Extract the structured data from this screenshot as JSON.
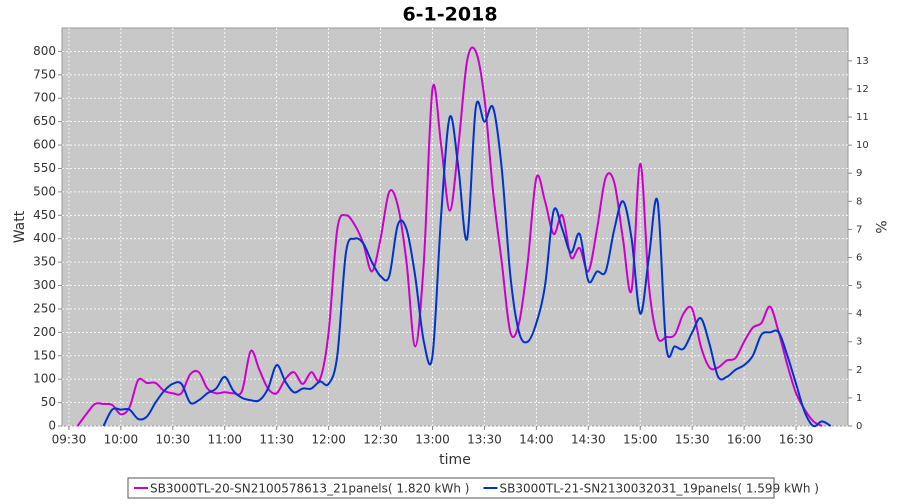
{
  "chart_data": {
    "type": "line",
    "title": "6-1-2018",
    "x_label": "time",
    "y_label": "Watt",
    "y2_label": "%",
    "x": [
      "09:30",
      "09:35",
      "09:40",
      "09:45",
      "09:50",
      "09:55",
      "10:00",
      "10:05",
      "10:10",
      "10:15",
      "10:20",
      "10:25",
      "10:30",
      "10:35",
      "10:40",
      "10:45",
      "10:50",
      "10:55",
      "11:00",
      "11:05",
      "11:10",
      "11:15",
      "11:20",
      "11:25",
      "11:30",
      "11:35",
      "11:40",
      "11:45",
      "11:50",
      "11:55",
      "12:00",
      "12:05",
      "12:10",
      "12:15",
      "12:20",
      "12:25",
      "12:30",
      "12:35",
      "12:40",
      "12:45",
      "12:50",
      "12:55",
      "13:00",
      "13:05",
      "13:10",
      "13:15",
      "13:20",
      "13:25",
      "13:30",
      "13:35",
      "13:40",
      "13:45",
      "13:50",
      "13:55",
      "14:00",
      "14:05",
      "14:10",
      "14:15",
      "14:20",
      "14:25",
      "14:30",
      "14:35",
      "14:40",
      "14:45",
      "14:50",
      "14:55",
      "15:00",
      "15:05",
      "15:10",
      "15:15",
      "15:20",
      "15:25",
      "15:30",
      "15:35",
      "15:40",
      "15:45",
      "15:50",
      "15:55",
      "16:00",
      "16:05",
      "16:10",
      "16:15",
      "16:20",
      "16:25",
      "16:30",
      "16:35",
      "16:40",
      "16:45",
      "16:50"
    ],
    "series": [
      {
        "name": "SB3000TL-20-SN2100578613_21panels( 1.820 kWh )",
        "color": "#cc00cc",
        "values": [
          null,
          0,
          25,
          47,
          47,
          45,
          25,
          40,
          98,
          92,
          92,
          75,
          70,
          70,
          110,
          115,
          80,
          70,
          72,
          70,
          75,
          160,
          120,
          80,
          70,
          100,
          115,
          90,
          115,
          100,
          200,
          420,
          450,
          430,
          390,
          330,
          400,
          500,
          470,
          350,
          170,
          350,
          720,
          600,
          460,
          600,
          780,
          800,
          700,
          500,
          350,
          200,
          220,
          350,
          530,
          480,
          410,
          450,
          360,
          380,
          330,
          420,
          530,
          520,
          400,
          290,
          560,
          300,
          190,
          190,
          195,
          240,
          250,
          170,
          125,
          125,
          140,
          145,
          180,
          210,
          220,
          255,
          200,
          130,
          70,
          35,
          10,
          0,
          null
        ]
      },
      {
        "name": "SB3000TL-21-SN2130032031_19panels( 1.599 kWh )",
        "color": "#0033cc",
        "values": [
          null,
          null,
          null,
          null,
          0,
          35,
          35,
          35,
          15,
          20,
          50,
          75,
          90,
          90,
          50,
          55,
          70,
          80,
          105,
          75,
          60,
          55,
          55,
          80,
          130,
          95,
          72,
          80,
          80,
          95,
          90,
          150,
          370,
          400,
          390,
          350,
          320,
          320,
          430,
          420,
          320,
          180,
          150,
          450,
          660,
          550,
          400,
          680,
          650,
          680,
          550,
          320,
          200,
          180,
          220,
          300,
          460,
          420,
          370,
          410,
          310,
          330,
          330,
          420,
          480,
          400,
          240,
          360,
          480,
          170,
          170,
          165,
          200,
          230,
          175,
          105,
          105,
          120,
          130,
          150,
          195,
          200,
          200,
          150,
          90,
          30,
          0,
          10,
          0
        ]
      }
    ],
    "xlim": [
      "09:26",
      "17:00"
    ],
    "xticks": [
      "09:30",
      "10:00",
      "10:30",
      "11:00",
      "11:30",
      "12:00",
      "12:30",
      "13:00",
      "13:30",
      "14:00",
      "14:30",
      "15:00",
      "15:30",
      "16:00",
      "16:30"
    ],
    "ylim": [
      0,
      850
    ],
    "yticks": [
      0,
      50,
      100,
      150,
      200,
      250,
      300,
      350,
      400,
      450,
      500,
      550,
      600,
      650,
      700,
      750,
      800
    ],
    "y2lim": [
      0,
      14.17
    ],
    "y2ticks": [
      0,
      1,
      2,
      3,
      4,
      5,
      6,
      7,
      8,
      9,
      10,
      11,
      12,
      13
    ],
    "grid": true,
    "legend": "bottom"
  }
}
